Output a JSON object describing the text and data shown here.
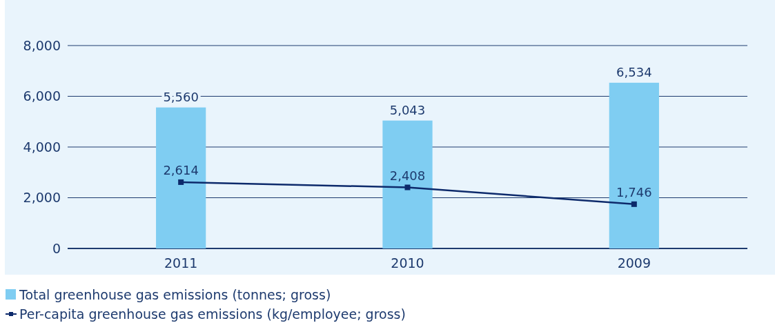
{
  "chart_data": {
    "type": "bar",
    "categories": [
      "2011",
      "2010",
      "2009"
    ],
    "series": [
      {
        "name": "Total greenhouse gas emissions (tonnes; gross)",
        "color": "#7fcdf2",
        "values": [
          5560,
          5043,
          6534
        ],
        "value_labels": [
          "5,560",
          "5,043",
          "6,534"
        ]
      },
      {
        "name": "Per-capita greenhouse gas emissions (kg/employee; gross)",
        "type": "line",
        "color": "#0d2a6b",
        "values": [
          2614,
          2408,
          1746
        ],
        "value_labels": [
          "2,614",
          "2,408",
          "1,746"
        ],
        "marker": "square"
      }
    ],
    "ylim": [
      0,
      8000
    ],
    "yticks": [
      {
        "value": 0,
        "label": "0"
      },
      {
        "value": 2000,
        "label": "2,000"
      },
      {
        "value": 4000,
        "label": "4,000"
      },
      {
        "value": 6000,
        "label": "6,000"
      },
      {
        "value": 8000,
        "label": "8,000"
      }
    ],
    "grid": "y",
    "legend": "bottom left"
  }
}
